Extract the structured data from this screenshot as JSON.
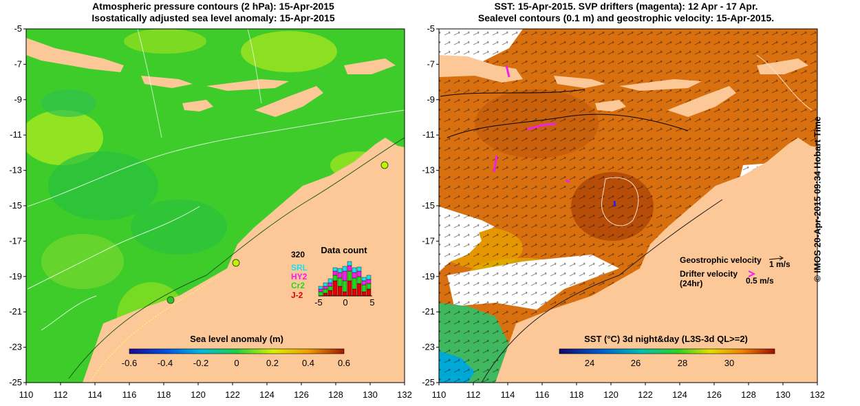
{
  "left_panel": {
    "title_line1": "Atmospheric pressure contours (2 hPa): 15-Apr-2015",
    "title_line2": "Isostatically adjusted sea level anomaly: 15-Apr-2015",
    "colorbar_label": "Sea level anomaly (m)",
    "colorbar_ticks": [
      "-0.6",
      "-0.4",
      "-0.2",
      "0",
      "0.2",
      "0.4",
      "0.6"
    ],
    "colors": {
      "ocean": "#3ecc2a",
      "land": "#fcc898",
      "contour": "#ffffff"
    },
    "inset": {
      "title": "Data count",
      "max_label": "320",
      "series": [
        "SRL",
        "HY2",
        "Cr2",
        "J-2"
      ],
      "series_colors": [
        "#19e0f0",
        "#f020e8",
        "#20d820",
        "#e00000"
      ],
      "x_ticks": [
        "-5",
        "0",
        "5"
      ]
    }
  },
  "right_panel": {
    "title_line1": "SST: 15-Apr-2015. SVP drifters (magenta): 12 Apr - 17 Apr.",
    "title_line2": "Sealevel contours (0.1 m) and geostrophic velocity: 15-Apr-2015.",
    "colorbar_label": "SST (°C) 3d night&day (L3S-3d QL>=2)",
    "colorbar_ticks": [
      "24",
      "26",
      "28",
      "30"
    ],
    "colors": {
      "ocean": "#d87010",
      "land": "#fcc898",
      "no_data": "#ffffff"
    },
    "legend": {
      "geostrophic_label": "Geostrophic velocity",
      "geostrophic_scale": "1 m/s",
      "drifter_label_line1": "Drifter velocity",
      "drifter_label_line2": "(24hr)",
      "drifter_scale": "0.5 m/s"
    }
  },
  "axes": {
    "x_ticks": [
      "110",
      "112",
      "114",
      "116",
      "118",
      "120",
      "122",
      "124",
      "126",
      "128",
      "130",
      "132"
    ],
    "y_ticks": [
      "-5",
      "-7",
      "-9",
      "-11",
      "-13",
      "-15",
      "-17",
      "-19",
      "-21",
      "-23",
      "-25"
    ],
    "lon_range": [
      110,
      132
    ],
    "lat_range": [
      -25,
      -5
    ]
  },
  "copyright": "© IMOS 20-Apr-2015 09:34 Hobart Time"
}
